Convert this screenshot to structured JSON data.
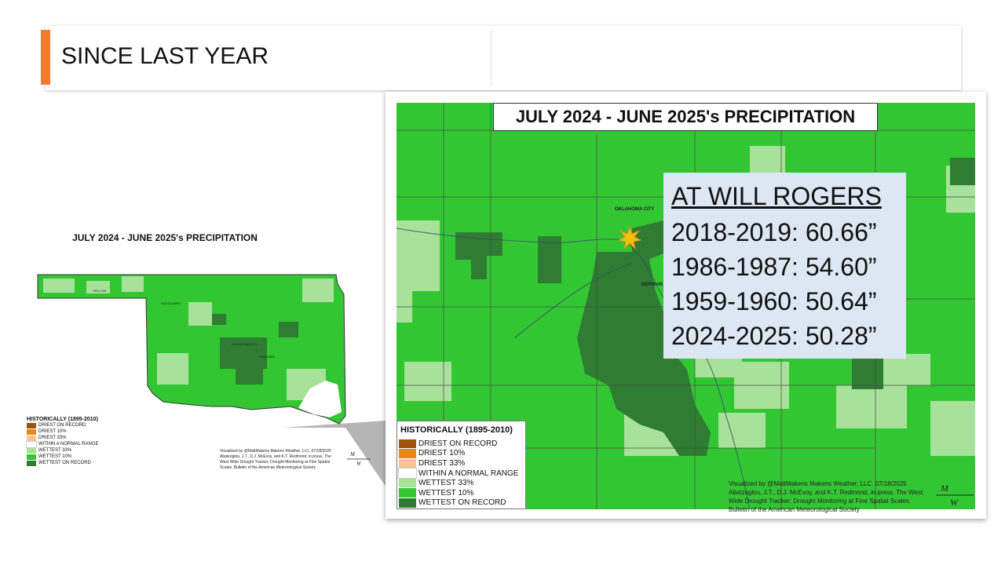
{
  "slide": {
    "title": "SINCE LAST YEAR",
    "accent_color": "#ed7d31"
  },
  "small_map": {
    "title": "JULY 2024 - JUNE 2025's PRECIPITATION",
    "legend_title": "HISTORICALLY (1895-2010)",
    "legend": [
      {
        "label": "DRIEST ON RECORD",
        "color": "#a0520a"
      },
      {
        "label": "DRIEST 10%",
        "color": "#e08a1e"
      },
      {
        "label": "DRIEST 33%",
        "color": "#f7c58c"
      },
      {
        "label": "WITHIN A NORMAL RANGE",
        "color": "#ffffff"
      },
      {
        "label": "WETTEST 33%",
        "color": "#a8e29a"
      },
      {
        "label": "WETTEST 10%",
        "color": "#33c633"
      },
      {
        "label": "WETTEST ON RECORD",
        "color": "#2e7d32"
      }
    ],
    "credit": "Visualized by @MattMakens Makens Weather, LLC. 07/18/2025 Abatzoglou, J.T., D.J. McEvoy, and K.T. Redmond, in press. The West Wide Drought Tracker: Drought Monitoring at Fine Spatial Scales. Bulletin of the American Meteorological Society",
    "logo_text": "Makens Weather"
  },
  "big_map": {
    "title": "JULY 2024 - JUNE 2025's PRECIPITATION",
    "legend_title": "HISTORICALLY (1895-2010)",
    "legend": [
      {
        "label": "DRIEST ON RECORD",
        "color": "#a0520a"
      },
      {
        "label": "DRIEST 10%",
        "color": "#e08a1e"
      },
      {
        "label": "DRIEST 33%",
        "color": "#f7c58c"
      },
      {
        "label": "WITHIN A NORMAL RANGE",
        "color": "#ffffff"
      },
      {
        "label": "WETTEST 33%",
        "color": "#a8e29a"
      },
      {
        "label": "WETTEST 10%",
        "color": "#33c633"
      },
      {
        "label": "WETTEST ON RECORD",
        "color": "#2e7d32"
      }
    ],
    "credit": "Visualized by @MattMakens Makens Weather, LLC. 07/18/2025 Abatzoglou, J.T., D.J. McEvoy, and K.T. Redmond, in press. The West Wide Drought Tracker: Drought Monitoring at Fine Spatial Scales. Bulletin of the American Meteorological Society",
    "logo_text": "Makens Weather",
    "city_labels": [
      "OKLAHOMA CITY",
      "NORMAN"
    ]
  },
  "stats": {
    "heading": "AT WILL ROGERS",
    "rows": [
      "2018-2019: 60.66”",
      "1986-1987: 54.60”",
      "1959-1960: 50.64”",
      "2024-2025: 50.28”"
    ]
  }
}
